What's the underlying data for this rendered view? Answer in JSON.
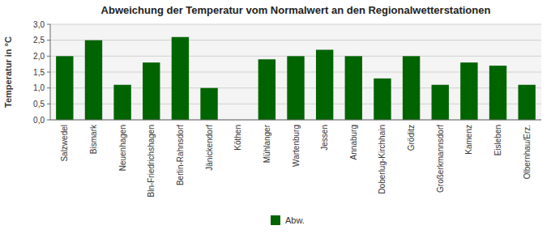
{
  "chart_data": {
    "type": "bar",
    "title": "Abweichung der Temperatur vom Normalwert an den Regionalwetterstationen",
    "ylabel": "Temperatur in °C",
    "categories": [
      "Salzwedel",
      "Bismark",
      "Neuenhagen",
      "Bln-Friedrichshagen",
      "Berlin-Rahnsdorf",
      "Jänickendorf",
      "Köthen",
      "Mühlanger",
      "Wartenburg",
      "Jessen",
      "Annaburg",
      "Doberlug-Kirchhain",
      "Gröditz",
      "Großerkmannsdorf",
      "Kamenz",
      "Eisleben",
      "Olbernhau/Erz."
    ],
    "series": [
      {
        "name": "Abw.",
        "color": "#006400",
        "values": [
          2.0,
          2.5,
          1.1,
          1.8,
          2.6,
          1.0,
          0.0,
          1.9,
          2.0,
          2.2,
          2.0,
          1.3,
          2.0,
          1.1,
          1.8,
          1.7,
          1.1
        ]
      }
    ],
    "ylim": [
      0.0,
      3.0
    ],
    "yticks": [
      {
        "value": 0.0,
        "label": "0,0"
      },
      {
        "value": 0.5,
        "label": "0,5"
      },
      {
        "value": 1.0,
        "label": "1,0"
      },
      {
        "value": 1.5,
        "label": "1,5"
      },
      {
        "value": 2.0,
        "label": "2,0"
      },
      {
        "value": 2.5,
        "label": "2,5"
      },
      {
        "value": 3.0,
        "label": "3,0"
      }
    ],
    "grid": true,
    "legend": "bottom"
  }
}
